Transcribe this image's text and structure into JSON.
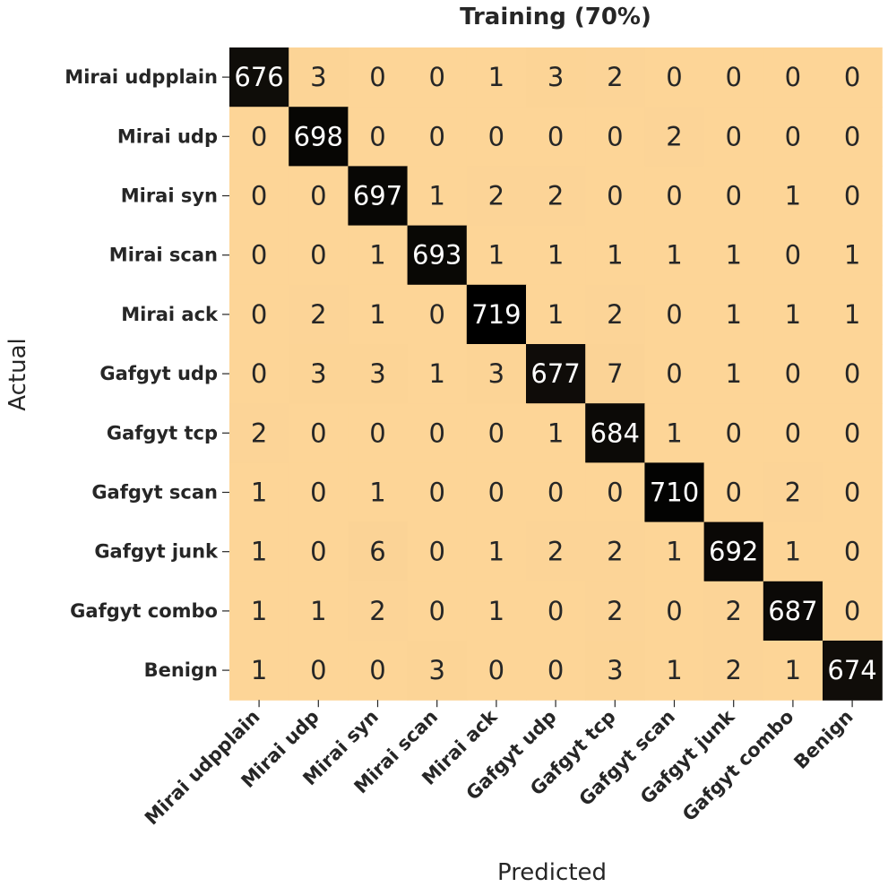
{
  "chart_data": {
    "type": "heatmap",
    "title": "Training (70%)",
    "xlabel": "Predicted",
    "ylabel": "Actual",
    "classes": [
      "Mirai udpplain",
      "Mirai udp",
      "Mirai syn",
      "Mirai scan",
      "Mirai ack",
      "Gafgyt udp",
      "Gafgyt tcp",
      "Gafgyt scan",
      "Gafgyt junk",
      "Gafgyt combo",
      "Benign"
    ],
    "matrix": [
      [
        676,
        3,
        0,
        0,
        1,
        3,
        2,
        0,
        0,
        0,
        0
      ],
      [
        0,
        698,
        0,
        0,
        0,
        0,
        0,
        2,
        0,
        0,
        0
      ],
      [
        0,
        0,
        697,
        1,
        2,
        2,
        0,
        0,
        0,
        1,
        0
      ],
      [
        0,
        0,
        1,
        693,
        1,
        1,
        1,
        1,
        1,
        0,
        1
      ],
      [
        0,
        2,
        1,
        0,
        719,
        1,
        2,
        0,
        1,
        1,
        1
      ],
      [
        0,
        3,
        3,
        1,
        3,
        677,
        7,
        0,
        1,
        0,
        0
      ],
      [
        2,
        0,
        0,
        0,
        0,
        1,
        684,
        1,
        0,
        0,
        0
      ],
      [
        1,
        0,
        1,
        0,
        0,
        0,
        0,
        710,
        0,
        2,
        0
      ],
      [
        1,
        0,
        6,
        0,
        1,
        2,
        2,
        1,
        692,
        1,
        0
      ],
      [
        1,
        1,
        2,
        0,
        1,
        0,
        2,
        0,
        2,
        687,
        0
      ],
      [
        1,
        0,
        0,
        3,
        0,
        0,
        3,
        1,
        2,
        1,
        674
      ]
    ],
    "colors": {
      "low": "#fdd597",
      "high": "#000000",
      "text_on_low": "#262626",
      "text_on_high": "#ffffff"
    },
    "colorbar": false,
    "grid": false
  }
}
